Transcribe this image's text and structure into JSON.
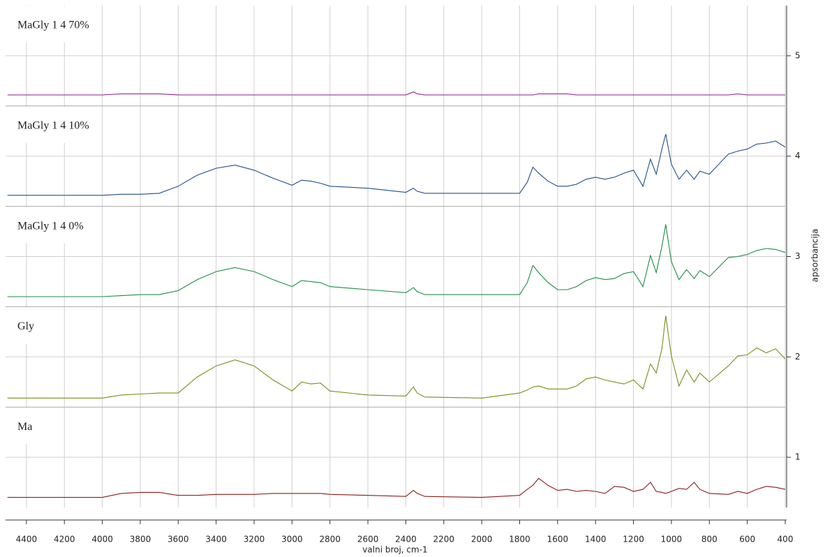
{
  "chart_data": {
    "type": "line",
    "x_label": "valni broj, cm-1",
    "y_label": "apsorbancija",
    "x": [
      4500,
      4000,
      3900,
      3800,
      3700,
      3600,
      3500,
      3400,
      3300,
      3200,
      3100,
      3000,
      2950,
      2900,
      2850,
      2800,
      2600,
      2400,
      2360,
      2340,
      2300,
      2000,
      1800,
      1760,
      1730,
      1700,
      1650,
      1600,
      1550,
      1500,
      1450,
      1400,
      1350,
      1300,
      1250,
      1200,
      1150,
      1110,
      1080,
      1050,
      1030,
      1000,
      960,
      920,
      880,
      850,
      800,
      700,
      650,
      600,
      550,
      500,
      450,
      400
    ],
    "series": [
      {
        "name": "MaGly 1 4 70%",
        "color": "#8b1a8b",
        "values": [
          4.61,
          4.61,
          4.62,
          4.62,
          4.62,
          4.61,
          4.61,
          4.61,
          4.61,
          4.61,
          4.61,
          4.61,
          4.61,
          4.61,
          4.61,
          4.61,
          4.61,
          4.61,
          4.64,
          4.62,
          4.61,
          4.61,
          4.61,
          4.61,
          4.61,
          4.62,
          4.62,
          4.62,
          4.62,
          4.61,
          4.61,
          4.61,
          4.61,
          4.61,
          4.61,
          4.61,
          4.61,
          4.61,
          4.61,
          4.61,
          4.61,
          4.61,
          4.61,
          4.61,
          4.61,
          4.61,
          4.61,
          4.61,
          4.62,
          4.61,
          4.61,
          4.61,
          4.61,
          4.61
        ]
      },
      {
        "name": "MaGly 1 4 10%",
        "color": "#1f4e8c",
        "values": [
          3.61,
          3.61,
          3.62,
          3.62,
          3.63,
          3.7,
          3.81,
          3.88,
          3.91,
          3.86,
          3.78,
          3.71,
          3.76,
          3.75,
          3.73,
          3.7,
          3.68,
          3.64,
          3.68,
          3.65,
          3.63,
          3.63,
          3.63,
          3.74,
          3.89,
          3.83,
          3.75,
          3.7,
          3.7,
          3.72,
          3.77,
          3.79,
          3.77,
          3.79,
          3.83,
          3.86,
          3.7,
          3.97,
          3.82,
          4.07,
          4.22,
          3.92,
          3.77,
          3.86,
          3.77,
          3.85,
          3.82,
          4.02,
          4.05,
          4.07,
          4.12,
          4.13,
          4.15,
          4.09
        ]
      },
      {
        "name": "MaGly 1 4 0%",
        "color": "#1e8c46",
        "values": [
          2.6,
          2.6,
          2.61,
          2.62,
          2.62,
          2.66,
          2.77,
          2.85,
          2.89,
          2.85,
          2.77,
          2.7,
          2.76,
          2.75,
          2.74,
          2.7,
          2.67,
          2.64,
          2.69,
          2.65,
          2.62,
          2.62,
          2.62,
          2.74,
          2.91,
          2.84,
          2.74,
          2.67,
          2.67,
          2.7,
          2.76,
          2.79,
          2.77,
          2.78,
          2.83,
          2.85,
          2.7,
          3.01,
          2.84,
          3.1,
          3.32,
          2.95,
          2.77,
          2.87,
          2.78,
          2.86,
          2.8,
          2.99,
          3.0,
          3.02,
          3.06,
          3.08,
          3.07,
          3.04
        ]
      },
      {
        "name": "Gly",
        "color": "#7a8c1a",
        "values": [
          1.59,
          1.59,
          1.62,
          1.63,
          1.64,
          1.64,
          1.8,
          1.91,
          1.97,
          1.91,
          1.77,
          1.66,
          1.75,
          1.73,
          1.74,
          1.66,
          1.62,
          1.61,
          1.7,
          1.64,
          1.6,
          1.59,
          1.64,
          1.67,
          1.7,
          1.71,
          1.68,
          1.68,
          1.68,
          1.71,
          1.78,
          1.8,
          1.77,
          1.75,
          1.73,
          1.77,
          1.68,
          1.93,
          1.84,
          2.08,
          2.41,
          2.01,
          1.71,
          1.87,
          1.75,
          1.84,
          1.75,
          1.91,
          2.01,
          2.02,
          2.09,
          2.04,
          2.08,
          1.98
        ]
      },
      {
        "name": "Ma",
        "color": "#8b1a1a",
        "values": [
          0.6,
          0.6,
          0.64,
          0.65,
          0.65,
          0.62,
          0.62,
          0.63,
          0.63,
          0.63,
          0.64,
          0.64,
          0.64,
          0.64,
          0.64,
          0.63,
          0.62,
          0.61,
          0.67,
          0.64,
          0.61,
          0.6,
          0.62,
          0.68,
          0.72,
          0.79,
          0.72,
          0.67,
          0.68,
          0.66,
          0.67,
          0.66,
          0.64,
          0.71,
          0.7,
          0.66,
          0.68,
          0.75,
          0.66,
          0.65,
          0.64,
          0.66,
          0.69,
          0.68,
          0.75,
          0.68,
          0.64,
          0.63,
          0.66,
          0.64,
          0.68,
          0.71,
          0.7,
          0.68
        ]
      }
    ],
    "xlim": [
      4510,
      400
    ],
    "xticks": [
      4400,
      4200,
      4000,
      3800,
      3600,
      3400,
      3200,
      3000,
      2800,
      2600,
      2400,
      2200,
      2000,
      1800,
      1600,
      1400,
      1200,
      1000,
      800,
      600,
      400
    ],
    "ylim": [
      0.5,
      5.5
    ],
    "yticks": [
      1,
      2,
      3,
      4,
      5
    ],
    "grid": true
  }
}
